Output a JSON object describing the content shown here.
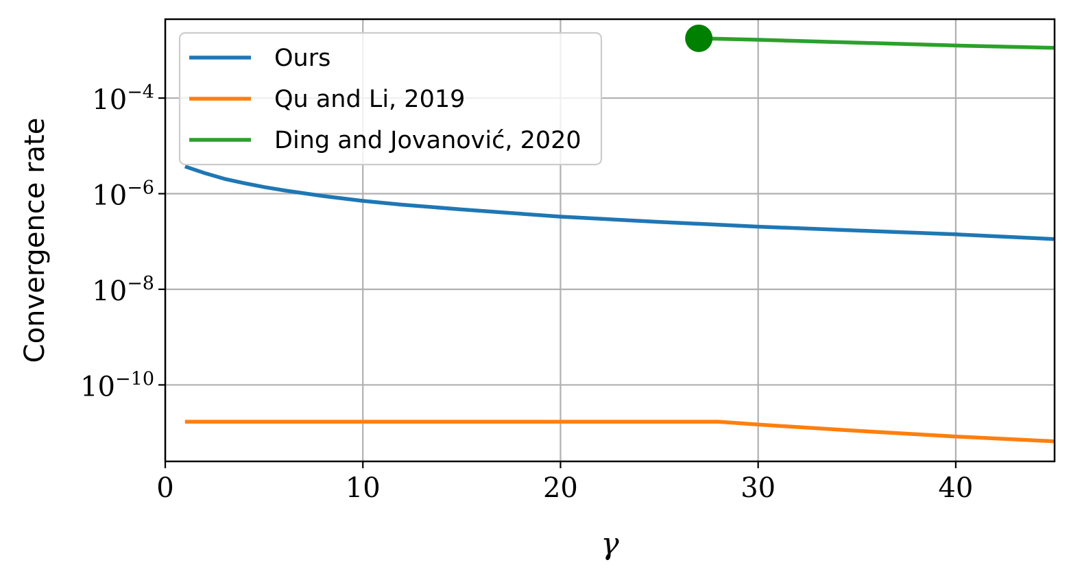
{
  "chart_data": {
    "type": "line",
    "xlabel": "γ",
    "ylabel": "Convergence rate",
    "xlim": [
      0,
      45
    ],
    "ylim_log10": [
      -11.6,
      -2.35
    ],
    "yscale": "log",
    "grid": true,
    "legend_position": "top-left",
    "x_ticks": [
      {
        "value": 0,
        "label": "0"
      },
      {
        "value": 10,
        "label": "10"
      },
      {
        "value": 20,
        "label": "20"
      },
      {
        "value": 30,
        "label": "30"
      },
      {
        "value": 40,
        "label": "40"
      }
    ],
    "y_ticks": [
      {
        "log10": -4,
        "base": "10",
        "exp": "−4"
      },
      {
        "log10": -6,
        "base": "10",
        "exp": "−6"
      },
      {
        "log10": -8,
        "base": "10",
        "exp": "−8"
      },
      {
        "log10": -10,
        "base": "10",
        "exp": "−10"
      }
    ],
    "series": [
      {
        "name": "Ours",
        "color": "#1f77b4",
        "x": [
          1,
          2,
          3,
          4,
          5,
          6,
          8,
          10,
          12,
          15,
          20,
          25,
          30,
          35,
          40,
          45
        ],
        "log10_y": [
          -5.43,
          -5.57,
          -5.69,
          -5.78,
          -5.86,
          -5.93,
          -6.05,
          -6.15,
          -6.23,
          -6.33,
          -6.48,
          -6.59,
          -6.69,
          -6.77,
          -6.85,
          -6.95
        ]
      },
      {
        "name": "Qu and Li, 2019",
        "color": "#ff7f0e",
        "x": [
          1,
          10,
          20,
          28,
          30,
          35,
          40,
          45
        ],
        "log10_y": [
          -10.77,
          -10.77,
          -10.77,
          -10.77,
          -10.83,
          -10.96,
          -11.08,
          -11.18
        ]
      },
      {
        "name": "Ding and Jovanović, 2020",
        "color": "#2ca02c",
        "x": [
          27,
          30,
          35,
          40,
          45
        ],
        "log10_y": [
          -2.75,
          -2.78,
          -2.84,
          -2.9,
          -2.95
        ]
      }
    ],
    "markers": [
      {
        "series": "Ding and Jovanović, 2020",
        "x": 27,
        "log10_y": -2.75,
        "color": "#008000"
      }
    ]
  }
}
